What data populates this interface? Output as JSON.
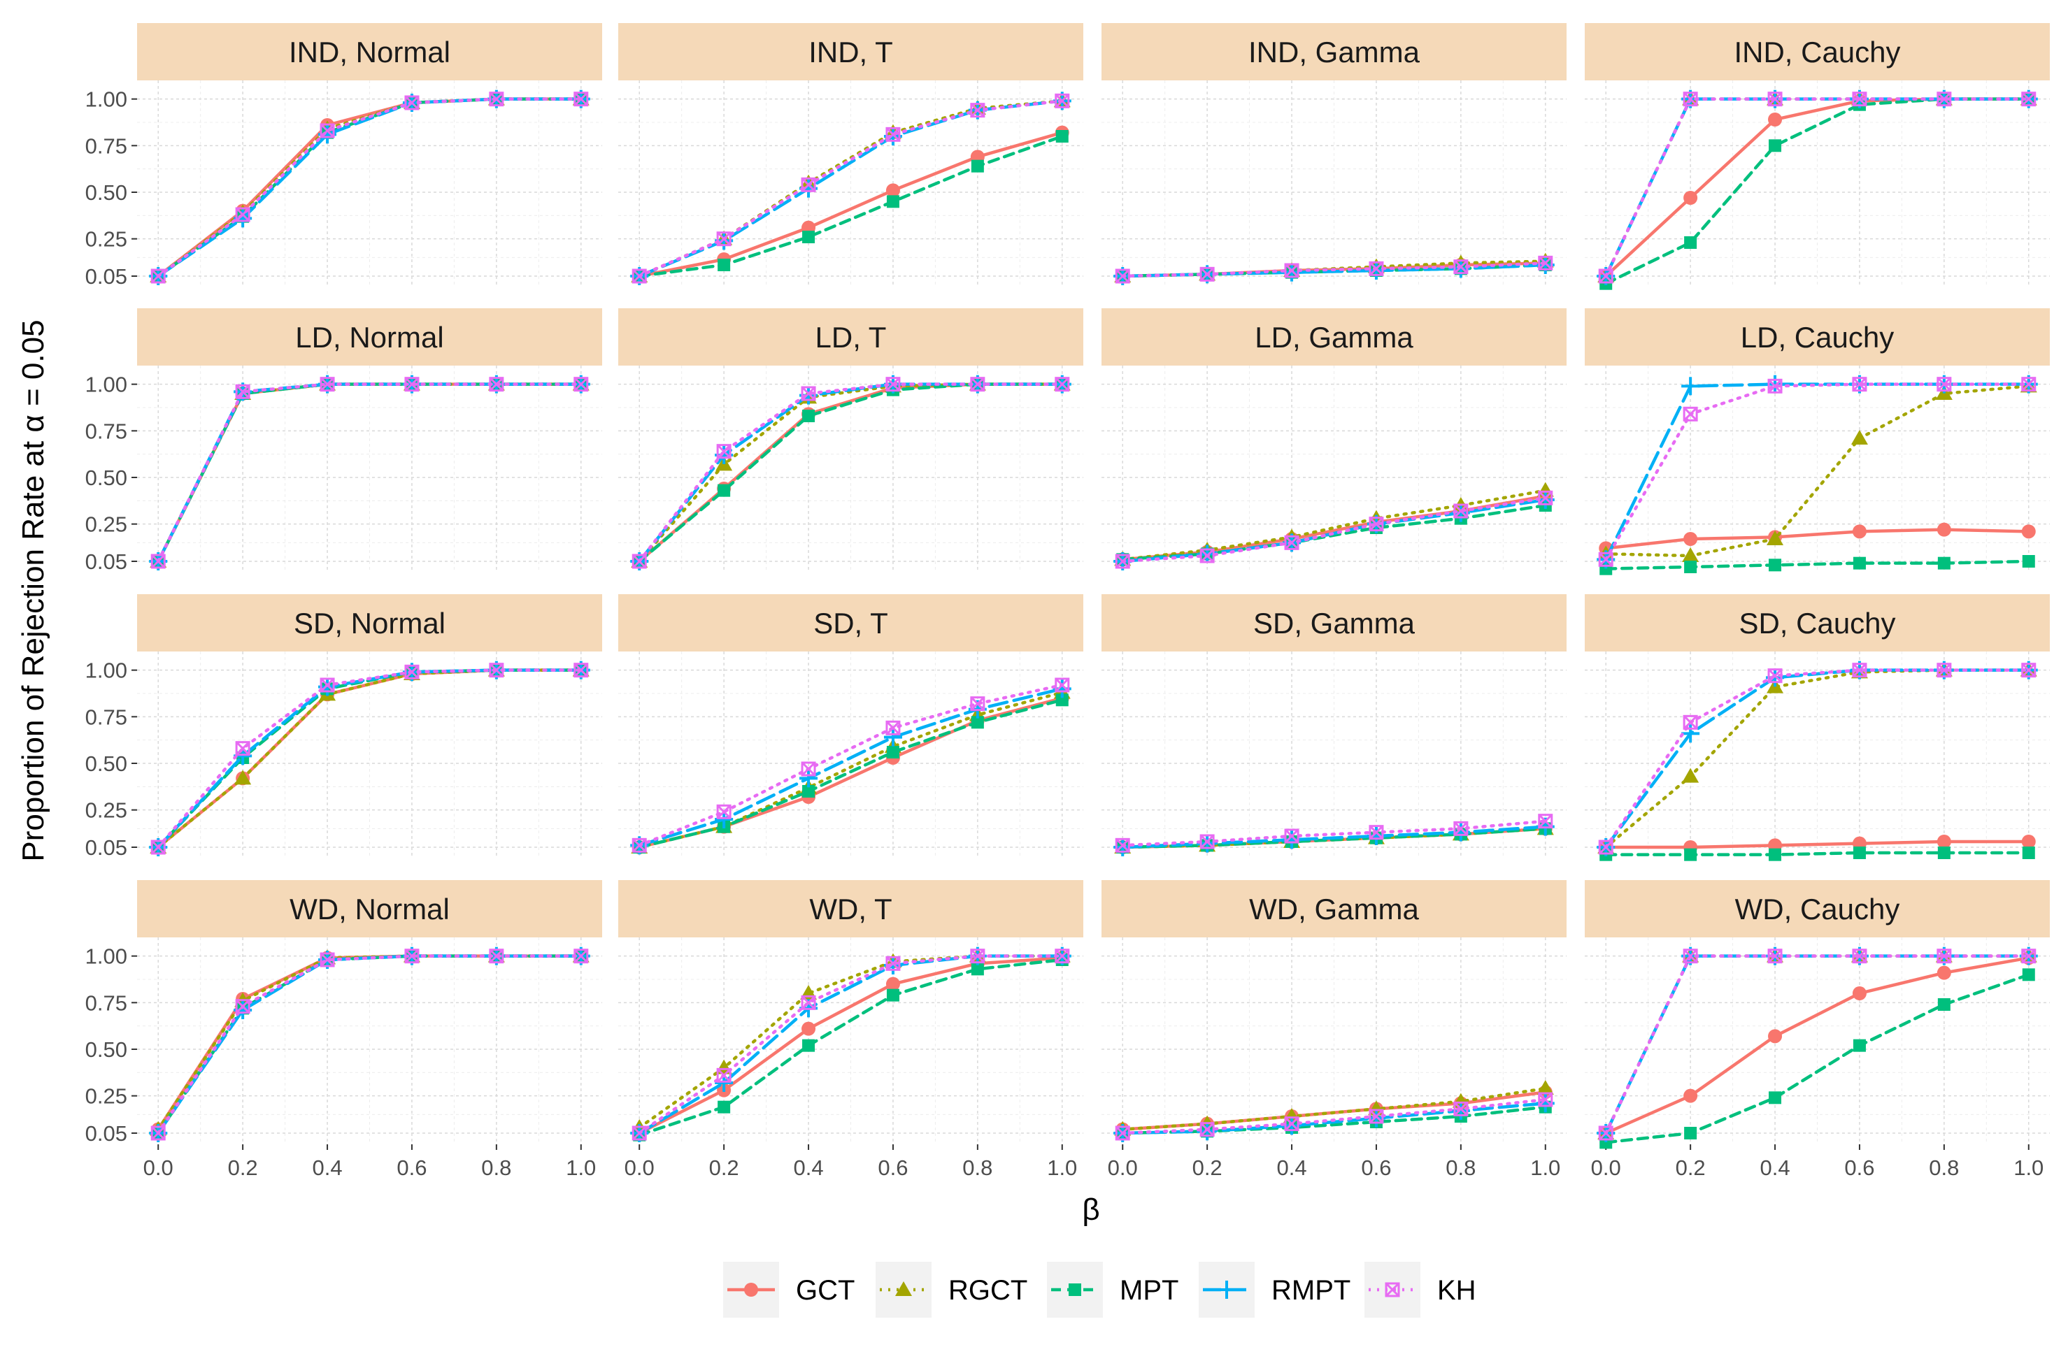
{
  "chart_data": {
    "type": "line",
    "title": "",
    "xlabel": "β",
    "ylabel": "Proportion of Rejection Rate at α = 0.05",
    "x": [
      0.0,
      0.2,
      0.4,
      0.6,
      0.8,
      1.0
    ],
    "x_tick_labels": [
      "0.0",
      "0.2",
      "0.4",
      "0.6",
      "0.8",
      "1.0"
    ],
    "y_ticks": [
      0.05,
      0.25,
      0.5,
      0.75,
      1.0
    ],
    "y_tick_labels": [
      "0.05",
      "0.25",
      "0.50",
      "0.75",
      "1.00"
    ],
    "xlim": [
      -0.05,
      1.05
    ],
    "ylim": [
      -0.01,
      1.1
    ],
    "grid": true,
    "legend_position": "bottom",
    "strip_color": "#f5d9b8",
    "panel_background": "#ffffff",
    "grid_color": "#d9d9d9",
    "series_styles": [
      {
        "name": "GCT",
        "color": "#f8766d",
        "linestyle": "solid",
        "marker": "circle"
      },
      {
        "name": "RGCT",
        "color": "#a3a500",
        "linestyle": "dotted",
        "marker": "triangle"
      },
      {
        "name": "MPT",
        "color": "#00bf7d",
        "linestyle": "dashed",
        "marker": "square"
      },
      {
        "name": "RMPT",
        "color": "#00b0f6",
        "linestyle": "longdash",
        "marker": "plus"
      },
      {
        "name": "KH",
        "color": "#e76bf3",
        "linestyle": "dotted",
        "marker": "boxx"
      }
    ],
    "panels": [
      {
        "label": "IND, Normal",
        "row": 0,
        "col": 0,
        "series": [
          {
            "name": "GCT",
            "values": [
              0.05,
              0.4,
              0.86,
              0.98,
              1.0,
              1.0
            ]
          },
          {
            "name": "RGCT",
            "values": [
              0.05,
              0.39,
              0.84,
              0.98,
              1.0,
              1.0
            ]
          },
          {
            "name": "MPT",
            "values": [
              0.05,
              0.37,
              0.82,
              0.98,
              1.0,
              1.0
            ]
          },
          {
            "name": "RMPT",
            "values": [
              0.05,
              0.36,
              0.81,
              0.98,
              1.0,
              1.0
            ]
          },
          {
            "name": "KH",
            "values": [
              0.05,
              0.38,
              0.83,
              0.98,
              1.0,
              1.0
            ]
          }
        ]
      },
      {
        "label": "IND, T",
        "row": 0,
        "col": 1,
        "series": [
          {
            "name": "GCT",
            "values": [
              0.05,
              0.14,
              0.31,
              0.51,
              0.69,
              0.82
            ]
          },
          {
            "name": "RGCT",
            "values": [
              0.05,
              0.25,
              0.55,
              0.82,
              0.95,
              0.99
            ]
          },
          {
            "name": "MPT",
            "values": [
              0.05,
              0.11,
              0.26,
              0.45,
              0.64,
              0.8
            ]
          },
          {
            "name": "RMPT",
            "values": [
              0.05,
              0.24,
              0.52,
              0.8,
              0.94,
              0.99
            ]
          },
          {
            "name": "KH",
            "values": [
              0.05,
              0.25,
              0.54,
              0.81,
              0.94,
              0.99
            ]
          }
        ]
      },
      {
        "label": "IND, Gamma",
        "row": 0,
        "col": 2,
        "series": [
          {
            "name": "GCT",
            "values": [
              0.05,
              0.06,
              0.08,
              0.09,
              0.11,
              0.12
            ]
          },
          {
            "name": "RGCT",
            "values": [
              0.05,
              0.06,
              0.08,
              0.1,
              0.12,
              0.13
            ]
          },
          {
            "name": "MPT",
            "values": [
              0.05,
              0.06,
              0.07,
              0.08,
              0.09,
              0.11
            ]
          },
          {
            "name": "RMPT",
            "values": [
              0.05,
              0.06,
              0.07,
              0.08,
              0.09,
              0.11
            ]
          },
          {
            "name": "KH",
            "values": [
              0.05,
              0.06,
              0.08,
              0.09,
              0.1,
              0.12
            ]
          }
        ]
      },
      {
        "label": "IND, Cauchy",
        "row": 0,
        "col": 3,
        "series": [
          {
            "name": "GCT",
            "values": [
              0.05,
              0.47,
              0.89,
              0.99,
              1.0,
              1.0
            ]
          },
          {
            "name": "RGCT",
            "values": [
              0.05,
              1.0,
              1.0,
              1.0,
              1.0,
              1.0
            ]
          },
          {
            "name": "MPT",
            "values": [
              0.01,
              0.23,
              0.75,
              0.97,
              1.0,
              1.0
            ]
          },
          {
            "name": "RMPT",
            "values": [
              0.05,
              1.0,
              1.0,
              1.0,
              1.0,
              1.0
            ]
          },
          {
            "name": "KH",
            "values": [
              0.05,
              1.0,
              1.0,
              1.0,
              1.0,
              1.0
            ]
          }
        ]
      },
      {
        "label": "LD, Normal",
        "row": 1,
        "col": 0,
        "series": [
          {
            "name": "GCT",
            "values": [
              0.05,
              0.95,
              1.0,
              1.0,
              1.0,
              1.0
            ]
          },
          {
            "name": "RGCT",
            "values": [
              0.05,
              0.95,
              1.0,
              1.0,
              1.0,
              1.0
            ]
          },
          {
            "name": "MPT",
            "values": [
              0.05,
              0.95,
              1.0,
              1.0,
              1.0,
              1.0
            ]
          },
          {
            "name": "RMPT",
            "values": [
              0.05,
              0.96,
              1.0,
              1.0,
              1.0,
              1.0
            ]
          },
          {
            "name": "KH",
            "values": [
              0.05,
              0.96,
              1.0,
              1.0,
              1.0,
              1.0
            ]
          }
        ]
      },
      {
        "label": "LD, T",
        "row": 1,
        "col": 1,
        "series": [
          {
            "name": "GCT",
            "values": [
              0.05,
              0.44,
              0.84,
              0.98,
              1.0,
              1.0
            ]
          },
          {
            "name": "RGCT",
            "values": [
              0.05,
              0.57,
              0.93,
              0.99,
              1.0,
              1.0
            ]
          },
          {
            "name": "MPT",
            "values": [
              0.05,
              0.43,
              0.83,
              0.97,
              1.0,
              1.0
            ]
          },
          {
            "name": "RMPT",
            "values": [
              0.05,
              0.62,
              0.94,
              1.0,
              1.0,
              1.0
            ]
          },
          {
            "name": "KH",
            "values": [
              0.05,
              0.64,
              0.95,
              1.0,
              1.0,
              1.0
            ]
          }
        ]
      },
      {
        "label": "LD, Gamma",
        "row": 1,
        "col": 2,
        "series": [
          {
            "name": "GCT",
            "values": [
              0.06,
              0.1,
              0.17,
              0.26,
              0.32,
              0.4
            ]
          },
          {
            "name": "RGCT",
            "values": [
              0.06,
              0.11,
              0.18,
              0.28,
              0.35,
              0.43
            ]
          },
          {
            "name": "MPT",
            "values": [
              0.06,
              0.09,
              0.15,
              0.23,
              0.28,
              0.35
            ]
          },
          {
            "name": "RMPT",
            "values": [
              0.05,
              0.09,
              0.15,
              0.25,
              0.31,
              0.38
            ]
          },
          {
            "name": "KH",
            "values": [
              0.05,
              0.08,
              0.15,
              0.25,
              0.32,
              0.39
            ]
          }
        ]
      },
      {
        "label": "LD, Cauchy",
        "row": 1,
        "col": 3,
        "series": [
          {
            "name": "GCT",
            "values": [
              0.12,
              0.17,
              0.18,
              0.21,
              0.22,
              0.21
            ]
          },
          {
            "name": "RGCT",
            "values": [
              0.09,
              0.08,
              0.17,
              0.71,
              0.95,
              0.99
            ]
          },
          {
            "name": "MPT",
            "values": [
              0.01,
              0.02,
              0.03,
              0.04,
              0.04,
              0.05
            ]
          },
          {
            "name": "RMPT",
            "values": [
              0.06,
              0.99,
              1.0,
              1.0,
              1.0,
              1.0
            ]
          },
          {
            "name": "KH",
            "values": [
              0.06,
              0.84,
              0.99,
              1.0,
              1.0,
              1.0
            ]
          }
        ]
      },
      {
        "label": "SD, Normal",
        "row": 2,
        "col": 0,
        "series": [
          {
            "name": "GCT",
            "values": [
              0.05,
              0.42,
              0.87,
              0.98,
              1.0,
              1.0
            ]
          },
          {
            "name": "RGCT",
            "values": [
              0.05,
              0.42,
              0.87,
              0.98,
              1.0,
              1.0
            ]
          },
          {
            "name": "MPT",
            "values": [
              0.05,
              0.53,
              0.9,
              0.99,
              1.0,
              1.0
            ]
          },
          {
            "name": "RMPT",
            "values": [
              0.05,
              0.54,
              0.91,
              0.99,
              1.0,
              1.0
            ]
          },
          {
            "name": "KH",
            "values": [
              0.05,
              0.58,
              0.92,
              0.99,
              1.0,
              1.0
            ]
          }
        ]
      },
      {
        "label": "SD, T",
        "row": 2,
        "col": 1,
        "series": [
          {
            "name": "GCT",
            "values": [
              0.05,
              0.16,
              0.32,
              0.53,
              0.73,
              0.85
            ]
          },
          {
            "name": "RGCT",
            "values": [
              0.05,
              0.16,
              0.37,
              0.59,
              0.76,
              0.88
            ]
          },
          {
            "name": "MPT",
            "values": [
              0.05,
              0.16,
              0.35,
              0.56,
              0.72,
              0.84
            ]
          },
          {
            "name": "RMPT",
            "values": [
              0.06,
              0.2,
              0.42,
              0.64,
              0.79,
              0.9
            ]
          },
          {
            "name": "KH",
            "values": [
              0.06,
              0.24,
              0.47,
              0.69,
              0.82,
              0.92
            ]
          }
        ]
      },
      {
        "label": "SD, Gamma",
        "row": 2,
        "col": 2,
        "series": [
          {
            "name": "GCT",
            "values": [
              0.05,
              0.06,
              0.08,
              0.1,
              0.12,
              0.15
            ]
          },
          {
            "name": "RGCT",
            "values": [
              0.05,
              0.06,
              0.08,
              0.1,
              0.12,
              0.15
            ]
          },
          {
            "name": "MPT",
            "values": [
              0.05,
              0.06,
              0.08,
              0.1,
              0.12,
              0.15
            ]
          },
          {
            "name": "RMPT",
            "values": [
              0.05,
              0.07,
              0.09,
              0.11,
              0.13,
              0.16
            ]
          },
          {
            "name": "KH",
            "values": [
              0.06,
              0.08,
              0.11,
              0.13,
              0.15,
              0.19
            ]
          }
        ]
      },
      {
        "label": "SD, Cauchy",
        "row": 2,
        "col": 3,
        "series": [
          {
            "name": "GCT",
            "values": [
              0.05,
              0.05,
              0.06,
              0.07,
              0.08,
              0.08
            ]
          },
          {
            "name": "RGCT",
            "values": [
              0.05,
              0.43,
              0.91,
              0.99,
              1.0,
              1.0
            ]
          },
          {
            "name": "MPT",
            "values": [
              0.01,
              0.01,
              0.01,
              0.02,
              0.02,
              0.02
            ]
          },
          {
            "name": "RMPT",
            "values": [
              0.05,
              0.66,
              0.96,
              1.0,
              1.0,
              1.0
            ]
          },
          {
            "name": "KH",
            "values": [
              0.05,
              0.72,
              0.97,
              1.0,
              1.0,
              1.0
            ]
          }
        ]
      },
      {
        "label": "WD, Normal",
        "row": 3,
        "col": 0,
        "series": [
          {
            "name": "GCT",
            "values": [
              0.07,
              0.77,
              0.99,
              1.0,
              1.0,
              1.0
            ]
          },
          {
            "name": "RGCT",
            "values": [
              0.07,
              0.76,
              0.99,
              1.0,
              1.0,
              1.0
            ]
          },
          {
            "name": "MPT",
            "values": [
              0.05,
              0.72,
              0.98,
              1.0,
              1.0,
              1.0
            ]
          },
          {
            "name": "RMPT",
            "values": [
              0.05,
              0.71,
              0.98,
              1.0,
              1.0,
              1.0
            ]
          },
          {
            "name": "KH",
            "values": [
              0.05,
              0.73,
              0.98,
              1.0,
              1.0,
              1.0
            ]
          }
        ]
      },
      {
        "label": "WD, T",
        "row": 3,
        "col": 1,
        "series": [
          {
            "name": "GCT",
            "values": [
              0.05,
              0.28,
              0.61,
              0.85,
              0.96,
              0.99
            ]
          },
          {
            "name": "RGCT",
            "values": [
              0.08,
              0.4,
              0.8,
              0.97,
              1.0,
              1.0
            ]
          },
          {
            "name": "MPT",
            "values": [
              0.04,
              0.19,
              0.52,
              0.79,
              0.93,
              0.98
            ]
          },
          {
            "name": "RMPT",
            "values": [
              0.05,
              0.32,
              0.72,
              0.95,
              1.0,
              1.0
            ]
          },
          {
            "name": "KH",
            "values": [
              0.05,
              0.36,
              0.75,
              0.96,
              1.0,
              1.0
            ]
          }
        ]
      },
      {
        "label": "WD, Gamma",
        "row": 3,
        "col": 2,
        "series": [
          {
            "name": "GCT",
            "values": [
              0.07,
              0.1,
              0.14,
              0.18,
              0.21,
              0.27
            ]
          },
          {
            "name": "RGCT",
            "values": [
              0.07,
              0.1,
              0.14,
              0.18,
              0.22,
              0.29
            ]
          },
          {
            "name": "MPT",
            "values": [
              0.05,
              0.06,
              0.08,
              0.11,
              0.14,
              0.19
            ]
          },
          {
            "name": "RMPT",
            "values": [
              0.05,
              0.06,
              0.09,
              0.13,
              0.17,
              0.21
            ]
          },
          {
            "name": "KH",
            "values": [
              0.05,
              0.07,
              0.1,
              0.14,
              0.18,
              0.23
            ]
          }
        ]
      },
      {
        "label": "WD, Cauchy",
        "row": 3,
        "col": 3,
        "series": [
          {
            "name": "GCT",
            "values": [
              0.05,
              0.25,
              0.57,
              0.8,
              0.91,
              0.99
            ]
          },
          {
            "name": "RGCT",
            "values": [
              0.05,
              1.0,
              1.0,
              1.0,
              1.0,
              1.0
            ]
          },
          {
            "name": "MPT",
            "values": [
              0.0,
              0.05,
              0.24,
              0.52,
              0.74,
              0.9
            ]
          },
          {
            "name": "RMPT",
            "values": [
              0.05,
              1.0,
              1.0,
              1.0,
              1.0,
              1.0
            ]
          },
          {
            "name": "KH",
            "values": [
              0.05,
              1.0,
              1.0,
              1.0,
              1.0,
              1.0
            ]
          }
        ]
      }
    ],
    "legend": [
      "GCT",
      "RGCT",
      "MPT",
      "RMPT",
      "KH"
    ]
  }
}
